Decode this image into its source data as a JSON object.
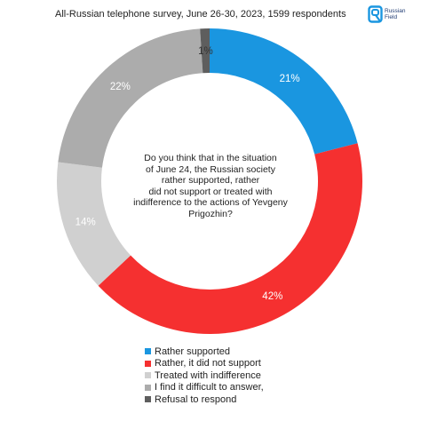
{
  "subtitle": "All-Russian telephone survey, June 26-30, 2023, 1599 respondents",
  "logo": {
    "line1": "Russian",
    "line2": "Field",
    "color": "#1f3b73",
    "icon": "russian-field-logo"
  },
  "question": "Do you think that in the situation\nof June 24, the Russian society\nrather supported, rather\ndid not support or treated with\nindifference to the actions of Yevgeny\nPrigozhin?",
  "chart_data": {
    "type": "pie",
    "style": "donut",
    "start_angle": "top",
    "direction": "clockwise",
    "categories": [
      "Rather supported",
      "Rather, it did not support",
      "Treated with indifference",
      "I find it difficult to answer,",
      "Refusal to respond"
    ],
    "values": [
      21,
      42,
      14,
      22,
      1
    ],
    "labels": [
      "21%",
      "42%",
      "14%",
      "22%",
      "1%"
    ],
    "colors": [
      "#1a96e0",
      "#f53030",
      "#d0d0d0",
      "#acacac",
      "#5e5e5e"
    ],
    "label_colors": [
      "#ffffff",
      "#ffffff",
      "#ffffff",
      "#ffffff",
      "#333333"
    ],
    "legend_position": "bottom"
  }
}
